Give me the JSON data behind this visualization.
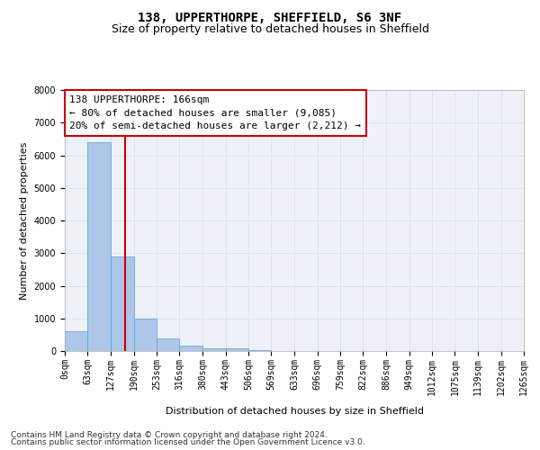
{
  "title": "138, UPPERTHORPE, SHEFFIELD, S6 3NF",
  "subtitle": "Size of property relative to detached houses in Sheffield",
  "xlabel": "Distribution of detached houses by size in Sheffield",
  "ylabel": "Number of detached properties",
  "bin_labels": [
    "0sqm",
    "63sqm",
    "127sqm",
    "190sqm",
    "253sqm",
    "316sqm",
    "380sqm",
    "443sqm",
    "506sqm",
    "569sqm",
    "633sqm",
    "696sqm",
    "759sqm",
    "822sqm",
    "886sqm",
    "949sqm",
    "1012sqm",
    "1075sqm",
    "1139sqm",
    "1202sqm",
    "1265sqm"
  ],
  "bin_edges": [
    0,
    63,
    127,
    190,
    253,
    316,
    380,
    443,
    506,
    569,
    633,
    696,
    759,
    822,
    886,
    949,
    1012,
    1075,
    1139,
    1202,
    1265
  ],
  "bar_heights": [
    600,
    6400,
    2900,
    1000,
    380,
    170,
    90,
    80,
    30,
    10,
    5,
    3,
    2,
    1,
    1,
    0,
    0,
    0,
    0,
    0
  ],
  "bar_color": "#aec6e8",
  "bar_edgecolor": "#5a9fd4",
  "property_size": 166,
  "vline_color": "#cc0000",
  "annotation_line1": "138 UPPERTHORPE: 166sqm",
  "annotation_line2": "← 80% of detached houses are smaller (9,085)",
  "annotation_line3": "20% of semi-detached houses are larger (2,212) →",
  "annotation_box_color": "#ffffff",
  "annotation_box_edgecolor": "#cc0000",
  "ylim": [
    0,
    8000
  ],
  "yticks": [
    0,
    1000,
    2000,
    3000,
    4000,
    5000,
    6000,
    7000,
    8000
  ],
  "grid_color": "#d8e0ec",
  "bg_color": "#eef2f8",
  "footer_line1": "Contains HM Land Registry data © Crown copyright and database right 2024.",
  "footer_line2": "Contains public sector information licensed under the Open Government Licence v3.0.",
  "title_fontsize": 10,
  "subtitle_fontsize": 9,
  "axis_label_fontsize": 8,
  "tick_fontsize": 7,
  "annotation_fontsize": 8,
  "footer_fontsize": 6.5
}
